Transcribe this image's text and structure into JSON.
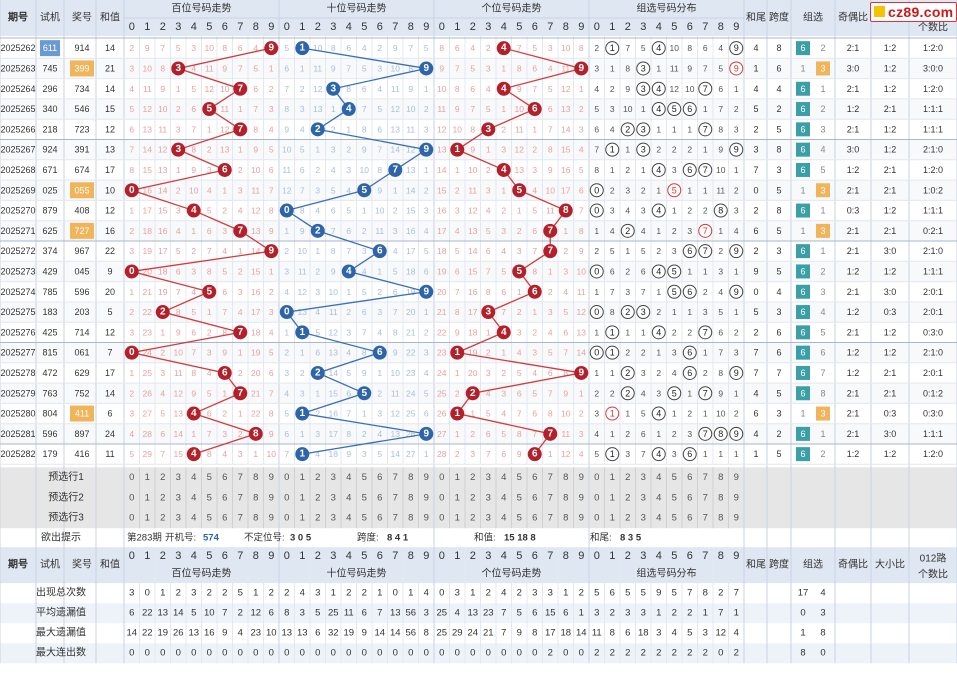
{
  "chart_data": {
    "type": "table",
    "header": {
      "issue": "期号",
      "trial": "试机",
      "prize": "奖号",
      "sum": "和值",
      "hundreds": "百位号码走势",
      "tens": "十位号码走势",
      "units": "个位号码走势",
      "group": "组选号码分布",
      "sum_tail": "和尾",
      "span": "跨度",
      "group_type": "组选",
      "odd_even": "奇偶比",
      "big_small": "大小比",
      "ratio012": "012路个数比",
      "digits": [
        "0",
        "1",
        "2",
        "3",
        "4",
        "5",
        "6",
        "7",
        "8",
        "9"
      ]
    },
    "rows": [
      {
        "issue": "2025262",
        "trial": "611",
        "prize": "914",
        "sum": "14",
        "d": [
          9,
          1,
          4
        ],
        "group": [
          1,
          4,
          9
        ],
        "tail": "4",
        "span": "8",
        "g6": "6",
        "g3": "2",
        "oe": "2:1",
        "bs": "1:2",
        "r": "1:2:0",
        "trial_hl": "blue"
      },
      {
        "issue": "2025263",
        "trial": "745",
        "prize": "399",
        "sum": "21",
        "d": [
          3,
          9,
          9
        ],
        "group": [
          3,
          9
        ],
        "tail": "1",
        "span": "6",
        "g6": "1",
        "g3": "3",
        "oe": "3:0",
        "bs": "1:2",
        "r": "3:0:0",
        "trial_hl": "",
        "prize_hl": "orange",
        "hl_type": "g3"
      },
      {
        "issue": "2025264",
        "trial": "296",
        "prize": "734",
        "sum": "14",
        "d": [
          7,
          3,
          4
        ],
        "group": [
          3,
          4,
          7
        ],
        "tail": "4",
        "span": "4",
        "g6": "6",
        "g3": "1",
        "oe": "2:1",
        "bs": "1:2",
        "r": "1:2:0"
      },
      {
        "issue": "2025265",
        "trial": "340",
        "prize": "546",
        "sum": "15",
        "d": [
          5,
          4,
          6
        ],
        "group": [
          4,
          5,
          6
        ],
        "tail": "5",
        "span": "2",
        "g6": "6",
        "g3": "2",
        "oe": "1:2",
        "bs": "2:1",
        "r": "1:1:1"
      },
      {
        "issue": "2025266",
        "trial": "218",
        "prize": "723",
        "sum": "12",
        "d": [
          7,
          2,
          3
        ],
        "group": [
          2,
          3,
          7
        ],
        "tail": "2",
        "span": "5",
        "g6": "6",
        "g3": "3",
        "oe": "2:1",
        "bs": "1:2",
        "r": "1:1:1"
      },
      {
        "issue": "2025267",
        "trial": "924",
        "prize": "391",
        "sum": "13",
        "d": [
          3,
          9,
          1
        ],
        "group": [
          1,
          3,
          9
        ],
        "tail": "3",
        "span": "8",
        "g6": "6",
        "g3": "4",
        "oe": "3:0",
        "bs": "1:2",
        "r": "2:1:0"
      },
      {
        "issue": "2025268",
        "trial": "671",
        "prize": "674",
        "sum": "17",
        "d": [
          6,
          7,
          4
        ],
        "group": [
          4,
          6,
          7
        ],
        "tail": "7",
        "span": "3",
        "g6": "6",
        "g3": "5",
        "oe": "1:2",
        "bs": "2:1",
        "r": "1:2:0"
      },
      {
        "issue": "2025269",
        "trial": "025",
        "prize": "055",
        "sum": "10",
        "d": [
          0,
          5,
          5
        ],
        "group": [
          0,
          5
        ],
        "tail": "0",
        "span": "5",
        "g6": "1",
        "g3": "3",
        "oe": "2:1",
        "bs": "2:1",
        "r": "1:0:2",
        "prize_hl": "orange",
        "hl_type": "g3"
      },
      {
        "issue": "2025270",
        "trial": "879",
        "prize": "408",
        "sum": "12",
        "d": [
          4,
          0,
          8
        ],
        "group": [
          0,
          4,
          8
        ],
        "tail": "2",
        "span": "8",
        "g6": "6",
        "g3": "1",
        "oe": "0:3",
        "bs": "1:2",
        "r": "1:1:1"
      },
      {
        "issue": "2025271",
        "trial": "625",
        "prize": "727",
        "sum": "16",
        "d": [
          7,
          2,
          7
        ],
        "group": [
          2,
          7
        ],
        "tail": "6",
        "span": "5",
        "g6": "1",
        "g3": "3",
        "oe": "2:1",
        "bs": "2:1",
        "r": "0:2:1",
        "prize_hl": "orange",
        "hl_type": "g3"
      },
      {
        "issue": "2025272",
        "trial": "374",
        "prize": "967",
        "sum": "22",
        "d": [
          9,
          6,
          7
        ],
        "group": [
          6,
          7,
          9
        ],
        "tail": "2",
        "span": "3",
        "g6": "6",
        "g3": "1",
        "oe": "2:1",
        "bs": "3:0",
        "r": "2:1:0"
      },
      {
        "issue": "2025273",
        "trial": "429",
        "prize": "045",
        "sum": "9",
        "d": [
          0,
          4,
          5
        ],
        "group": [
          0,
          4,
          5
        ],
        "tail": "9",
        "span": "5",
        "g6": "6",
        "g3": "2",
        "oe": "1:2",
        "bs": "1:2",
        "r": "1:1:1"
      },
      {
        "issue": "2025274",
        "trial": "785",
        "prize": "596",
        "sum": "20",
        "d": [
          5,
          9,
          6
        ],
        "group": [
          5,
          6,
          9
        ],
        "tail": "0",
        "span": "4",
        "g6": "6",
        "g3": "3",
        "oe": "2:1",
        "bs": "3:0",
        "r": "2:0:1"
      },
      {
        "issue": "2025275",
        "trial": "183",
        "prize": "203",
        "sum": "5",
        "d": [
          2,
          0,
          3
        ],
        "group": [
          0,
          2,
          3
        ],
        "tail": "5",
        "span": "3",
        "g6": "6",
        "g3": "4",
        "oe": "1:2",
        "bs": "0:3",
        "r": "2:0:1"
      },
      {
        "issue": "2025276",
        "trial": "425",
        "prize": "714",
        "sum": "12",
        "d": [
          7,
          1,
          4
        ],
        "group": [
          1,
          4,
          7
        ],
        "tail": "2",
        "span": "6",
        "g6": "6",
        "g3": "5",
        "oe": "2:1",
        "bs": "1:2",
        "r": "0:3:0"
      },
      {
        "issue": "2025277",
        "trial": "815",
        "prize": "061",
        "sum": "7",
        "d": [
          0,
          6,
          1
        ],
        "group": [
          0,
          1,
          6
        ],
        "tail": "7",
        "span": "6",
        "g6": "6",
        "g3": "6",
        "oe": "1:2",
        "bs": "1:2",
        "r": "2:1:0"
      },
      {
        "issue": "2025278",
        "trial": "472",
        "prize": "629",
        "sum": "17",
        "d": [
          6,
          2,
          9
        ],
        "group": [
          2,
          6,
          9
        ],
        "tail": "7",
        "span": "7",
        "g6": "6",
        "g3": "7",
        "oe": "1:2",
        "bs": "2:1",
        "r": "2:0:1"
      },
      {
        "issue": "2025279",
        "trial": "763",
        "prize": "752",
        "sum": "14",
        "d": [
          7,
          5,
          2
        ],
        "group": [
          2,
          5,
          7
        ],
        "tail": "4",
        "span": "5",
        "g6": "6",
        "g3": "8",
        "oe": "2:1",
        "bs": "2:1",
        "r": "0:1:2"
      },
      {
        "issue": "2025280",
        "trial": "804",
        "prize": "411",
        "sum": "6",
        "d": [
          4,
          1,
          1
        ],
        "group": [
          1,
          4
        ],
        "tail": "6",
        "span": "3",
        "g6": "1",
        "g3": "3",
        "oe": "2:1",
        "bs": "0:3",
        "r": "0:3:0",
        "prize_hl": "orange",
        "hl_type": "g3"
      },
      {
        "issue": "2025281",
        "trial": "596",
        "prize": "897",
        "sum": "24",
        "d": [
          8,
          9,
          7
        ],
        "group": [
          7,
          8,
          9
        ],
        "tail": "4",
        "span": "2",
        "g6": "6",
        "g3": "1",
        "oe": "2:1",
        "bs": "3:0",
        "r": "1:1:1"
      },
      {
        "issue": "2025282",
        "trial": "179",
        "prize": "416",
        "sum": "11",
        "d": [
          4,
          1,
          6
        ],
        "group": [
          1,
          4,
          6
        ],
        "tail": "1",
        "span": "5",
        "g6": "6",
        "g3": "2",
        "oe": "1:2",
        "bs": "1:2",
        "r": "1:2:0"
      }
    ],
    "pre_rows": [
      "预选行1",
      "预选行2",
      "预选行3"
    ],
    "hint": {
      "label": "欲出提示",
      "issue_text": "第283期",
      "open_label": "开机号:",
      "open_value": "574",
      "pos_label": "不定位号:",
      "pos_value": "3 0 5",
      "span_label": "跨度:",
      "span_value": "8 4 1",
      "sum_label": "和值:",
      "sum_value": "15 18 8",
      "tail_label": "和尾:",
      "tail_value": "8 3 5"
    },
    "stats": [
      {
        "label": "出现总次数",
        "h": [
          3,
          0,
          1,
          2,
          3,
          2,
          2,
          5,
          1,
          2
        ],
        "t": [
          2,
          4,
          3,
          1,
          2,
          2,
          1,
          0,
          1,
          4
        ],
        "u": [
          0,
          3,
          1,
          2,
          4,
          2,
          3,
          3,
          1,
          2
        ],
        "g": [
          5,
          6,
          5,
          5,
          9,
          5,
          7,
          8,
          2,
          7
        ],
        "g6": "17",
        "g3": "4"
      },
      {
        "label": "平均遗漏值",
        "h": [
          6,
          22,
          13,
          14,
          5,
          10,
          7,
          2,
          12,
          6
        ],
        "t": [
          8,
          3,
          5,
          25,
          11,
          6,
          7,
          13,
          56,
          3
        ],
        "u": [
          25,
          4,
          13,
          23,
          7,
          5,
          6,
          15,
          6,
          1
        ],
        "g": [
          3,
          2,
          3,
          3,
          1,
          2,
          2,
          1,
          7,
          1
        ],
        "g6": "0",
        "g3": "3"
      },
      {
        "label": "最大遗漏值",
        "h": [
          14,
          22,
          19,
          26,
          13,
          16,
          9,
          4,
          23,
          10
        ],
        "t": [
          13,
          13,
          6,
          32,
          19,
          9,
          14,
          14,
          56,
          8
        ],
        "u": [
          25,
          29,
          24,
          21,
          7,
          9,
          8,
          17,
          18,
          14
        ],
        "g": [
          11,
          8,
          6,
          18,
          3,
          4,
          5,
          3,
          12,
          4
        ],
        "g6": "1",
        "g3": "8"
      },
      {
        "label": "最大连出数",
        "h": [
          0,
          0,
          0,
          0,
          0,
          0,
          0,
          0,
          0,
          0
        ],
        "t": [
          0,
          0,
          0,
          0,
          0,
          0,
          0,
          0,
          0,
          0
        ],
        "u": [
          0,
          0,
          0,
          0,
          0,
          0,
          0,
          2,
          0,
          0
        ],
        "g": [
          2,
          2,
          2,
          2,
          2,
          2,
          2,
          2,
          0,
          2
        ],
        "g6": "8",
        "g3": "0"
      }
    ],
    "bottom_header": {
      "issue": "期号",
      "trial": "试机",
      "prize": "奖号",
      "sum": "和值",
      "hundreds": "百位号码走势",
      "tens": "十位号码走势",
      "units": "个位号码走势",
      "group": "组选号码分布",
      "sum_tail": "和尾",
      "span": "跨度",
      "group_type": "组选",
      "odd_even": "奇偶比",
      "big_small": "大小比",
      "ratio012": "012路个数比"
    }
  },
  "logo": {
    "text": "cz89.com"
  },
  "colors": {
    "header_bg": "#dfe7f2",
    "grid": "#c9d3e3",
    "red_ball": "#b3202a",
    "blue_ball": "#2e65a8",
    "red_line": "#d23b3b",
    "blue_line": "#3a6fb8",
    "miss_red": "#e8a0a0",
    "miss_blue": "#a8bedc",
    "teal": "#3b9fa8",
    "orange": "#f0b45a",
    "blue_badge": "#6a9ad1"
  }
}
